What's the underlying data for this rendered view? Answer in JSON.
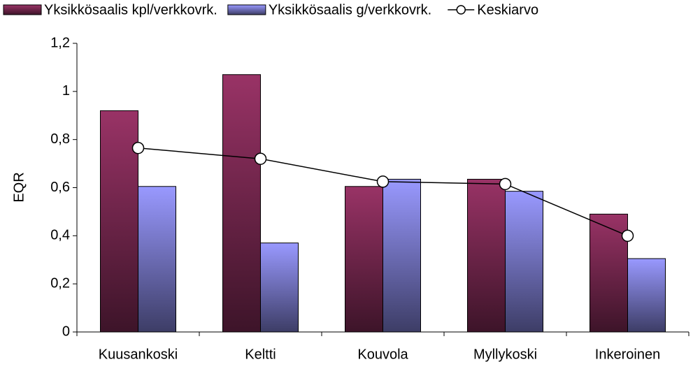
{
  "chart_data": {
    "type": "bar",
    "y_label": "EQR",
    "categories": [
      "Kuusankoski",
      "Keltti",
      "Kouvola",
      "Myllykoski",
      "Inkeroinen"
    ],
    "series": [
      {
        "name": "Yksikkösaalis kpl/verkkovrk.",
        "type": "bar",
        "color": "#993366",
        "values": [
          0.92,
          1.07,
          0.605,
          0.635,
          0.49
        ]
      },
      {
        "name": "Yksikkösaalis g/verkkovrk.",
        "type": "bar",
        "color": "#9999ff",
        "values": [
          0.605,
          0.37,
          0.635,
          0.585,
          0.305
        ]
      },
      {
        "name": "Keskiarvo",
        "type": "line",
        "color": "#000000",
        "values": [
          0.765,
          0.72,
          0.625,
          0.615,
          0.4
        ]
      }
    ],
    "ylim": [
      0,
      1.2
    ],
    "yticks": [
      0,
      {
        "value": 0.2,
        "label": "0,2"
      },
      {
        "value": 0.4,
        "label": "0,4"
      },
      {
        "value": 0.6,
        "label": "0,6"
      },
      {
        "value": 0.8,
        "label": "0,8"
      },
      1,
      {
        "value": 1.2,
        "label": "1,2"
      }
    ],
    "legend": "top"
  }
}
